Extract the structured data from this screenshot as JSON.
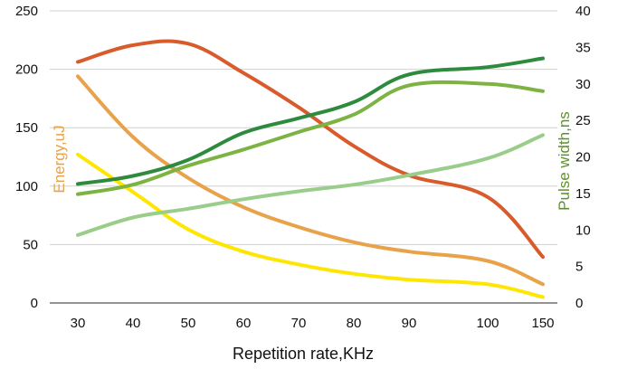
{
  "chart_data": {
    "type": "line",
    "x": [
      30,
      40,
      50,
      60,
      70,
      80,
      90,
      100,
      150
    ],
    "x_tick_labels": [
      "30",
      "40",
      "50",
      "60",
      "70",
      "80",
      "90",
      "100",
      "150"
    ],
    "xlabel": "Repetition rate,KHz",
    "ylabel_left": "Energy,uJ",
    "ylabel_right": "Pulse width,ns",
    "ylim_left": [
      0,
      250
    ],
    "ylim_right": [
      0,
      40
    ],
    "y_ticks_left": [
      "0",
      "50",
      "100",
      "150",
      "200",
      "250"
    ],
    "y_ticks_right": [
      "0",
      "5",
      "10",
      "15",
      "20",
      "25",
      "30",
      "35",
      "40"
    ],
    "grid": "horizontal",
    "ylabel_left_color": "#E8A24A",
    "ylabel_right_color": "#5E8F2F",
    "series": [
      {
        "axis": "left",
        "color": "#E8A24A",
        "values": [
          194,
          142,
          107,
          82,
          65,
          52,
          44,
          36,
          16
        ]
      },
      {
        "axis": "left",
        "color": "#FFE600",
        "values": [
          127,
          95,
          63,
          44,
          33,
          25,
          20,
          16,
          5
        ]
      },
      {
        "axis": "right",
        "color": "#D95B2B",
        "values": [
          33,
          35.3,
          35.5,
          31.5,
          26.8,
          21.5,
          17.5,
          14.5,
          6.3
        ]
      },
      {
        "axis": "right",
        "color": "#2E8B3E",
        "values": [
          16.3,
          17.4,
          19.6,
          23.3,
          25.3,
          27.5,
          31.3,
          32.3,
          33.5
        ]
      },
      {
        "axis": "right",
        "color": "#7CB342",
        "values": [
          14.9,
          16.2,
          18.8,
          21,
          23.4,
          25.8,
          29.8,
          30,
          29
        ]
      },
      {
        "axis": "right",
        "color": "#9ACD8A",
        "values": [
          9.3,
          11.7,
          12.9,
          14.2,
          15.3,
          16.2,
          17.5,
          19.8,
          23
        ]
      }
    ]
  }
}
